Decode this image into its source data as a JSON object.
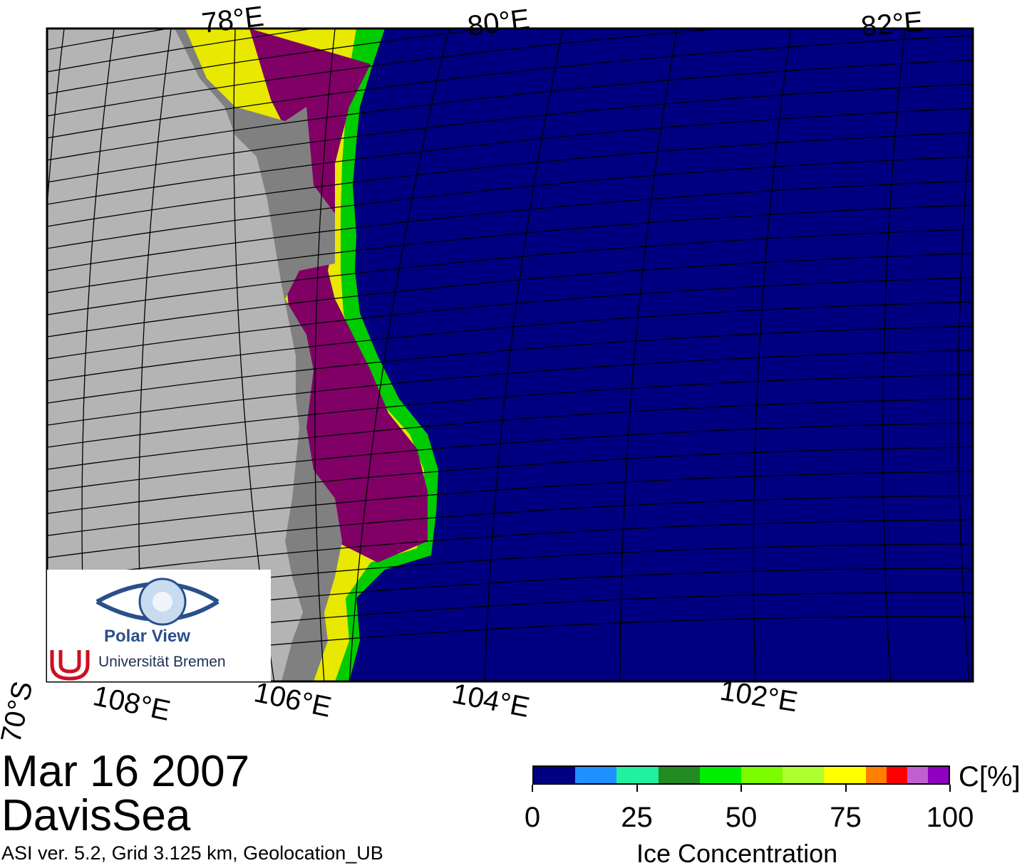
{
  "map": {
    "top_longitude_labels": [
      "78°E",
      "80°E",
      "82°E"
    ],
    "bottom_longitude_labels": [
      "108°E",
      "106°E",
      "104°E",
      "102°E"
    ],
    "latitude_label": "70°S",
    "colors": {
      "ocean": "#000080",
      "land": "#b4b4b4",
      "shelf_ice": "#808080",
      "high_ice": "#800066"
    }
  },
  "info": {
    "date": "Mar 16 2007",
    "region": "DavisSea",
    "credit": "ASI ver. 5.2,  Grid 3.125 km, Geolocation_UB"
  },
  "logo": {
    "title": "Polar View",
    "subtitle": "Universität Bremen"
  },
  "colorbar": {
    "unit": "C[%]",
    "title": "Ice Concentration",
    "ticks": [
      "0",
      "25",
      "50",
      "75",
      "100"
    ],
    "colors": [
      "#000080",
      "#1e90ff",
      "#20f0a0",
      "#228b22",
      "#00ee00",
      "#7cfc00",
      "#adff2f",
      "#ffff00",
      "#ff8000",
      "#ff0000",
      "#c060d0",
      "#9000c0"
    ]
  }
}
